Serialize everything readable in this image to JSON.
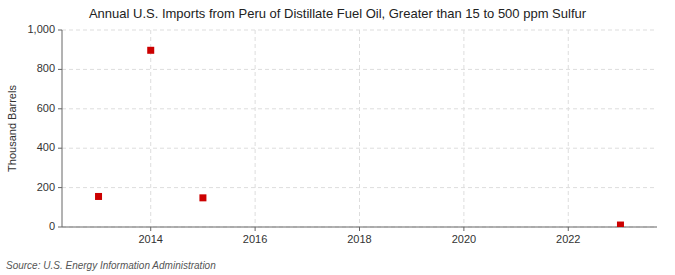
{
  "chart_data": {
    "type": "scatter",
    "title": "Annual U.S. Imports from Peru of Distillate Fuel Oil, Greater than 15 to 500 ppm Sulfur",
    "ylabel": "Thousand Barrels",
    "source": "Source: U.S. Energy Information Administration",
    "x": [
      2013,
      2014,
      2015,
      2023
    ],
    "values": [
      155,
      897,
      148,
      10
    ],
    "color": "#cc0000",
    "marker": "square",
    "xlim": [
      2012.3,
      2023.7
    ],
    "ylim": [
      0,
      1000
    ],
    "xticks": [
      2014,
      2016,
      2018,
      2020,
      2022
    ],
    "yticks": [
      0,
      200,
      400,
      600,
      800,
      {
        "value": 1000,
        "label": "1,000"
      }
    ],
    "grid": true
  }
}
